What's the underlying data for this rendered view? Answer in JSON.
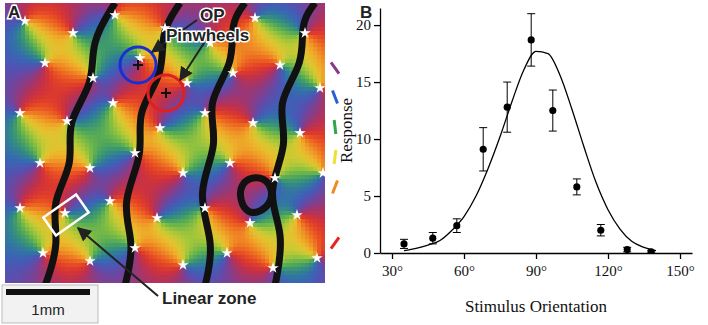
{
  "chart_data": [
    {
      "type": "orientation_map",
      "panel_label": "A",
      "annotations": [
        "OP",
        "Pinwheels",
        "Linear zone"
      ],
      "scale_bar": "1mm",
      "colors": [
        "#8b3a8b",
        "#2a5fd6",
        "#2ea84a",
        "#f0e030",
        "#f08a24",
        "#e8241c"
      ]
    },
    {
      "type": "scatter",
      "panel_label": "B",
      "x_label": "Stimulus Orientation",
      "y_label": "Response",
      "xlim": [
        25,
        155
      ],
      "xticks": [
        {
          "value": 30,
          "label": "30°"
        },
        {
          "value": 60,
          "label": "60°"
        },
        {
          "value": 90,
          "label": "90°"
        },
        {
          "value": 120,
          "label": "120°"
        },
        {
          "value": 150,
          "label": "150°"
        }
      ],
      "ylim": [
        0,
        21.5
      ],
      "yticks": [
        0,
        5,
        10,
        15,
        20
      ],
      "series": [
        {
          "type": "scatter",
          "marker": "circle",
          "color": "#000000",
          "x": [
            35,
            47,
            57,
            68,
            78,
            88,
            97,
            107,
            117,
            128,
            138
          ],
          "values": [
            0.8,
            1.3,
            2.4,
            9.1,
            12.8,
            18.7,
            12.5,
            5.8,
            2.0,
            0.3,
            0.1
          ],
          "errors": [
            0.4,
            0.5,
            0.6,
            1.9,
            2.2,
            2.3,
            1.8,
            0.7,
            0.5,
            0.2,
            0.1
          ]
        },
        {
          "type": "line",
          "line_style": "solid",
          "color": "#000000",
          "x": [
            35,
            40,
            45,
            50,
            55,
            60,
            65,
            70,
            75,
            80,
            85,
            90,
            95,
            100,
            105,
            110,
            115,
            120,
            125,
            130,
            135,
            140
          ],
          "values": [
            0.2,
            0.4,
            0.7,
            1.1,
            2.0,
            3.2,
            5.0,
            7.4,
            10.2,
            13.3,
            16.1,
            17.7,
            17.5,
            15.6,
            12.6,
            9.3,
            6.2,
            3.8,
            2.1,
            1.0,
            0.5,
            0.2
          ]
        }
      ]
    }
  ]
}
